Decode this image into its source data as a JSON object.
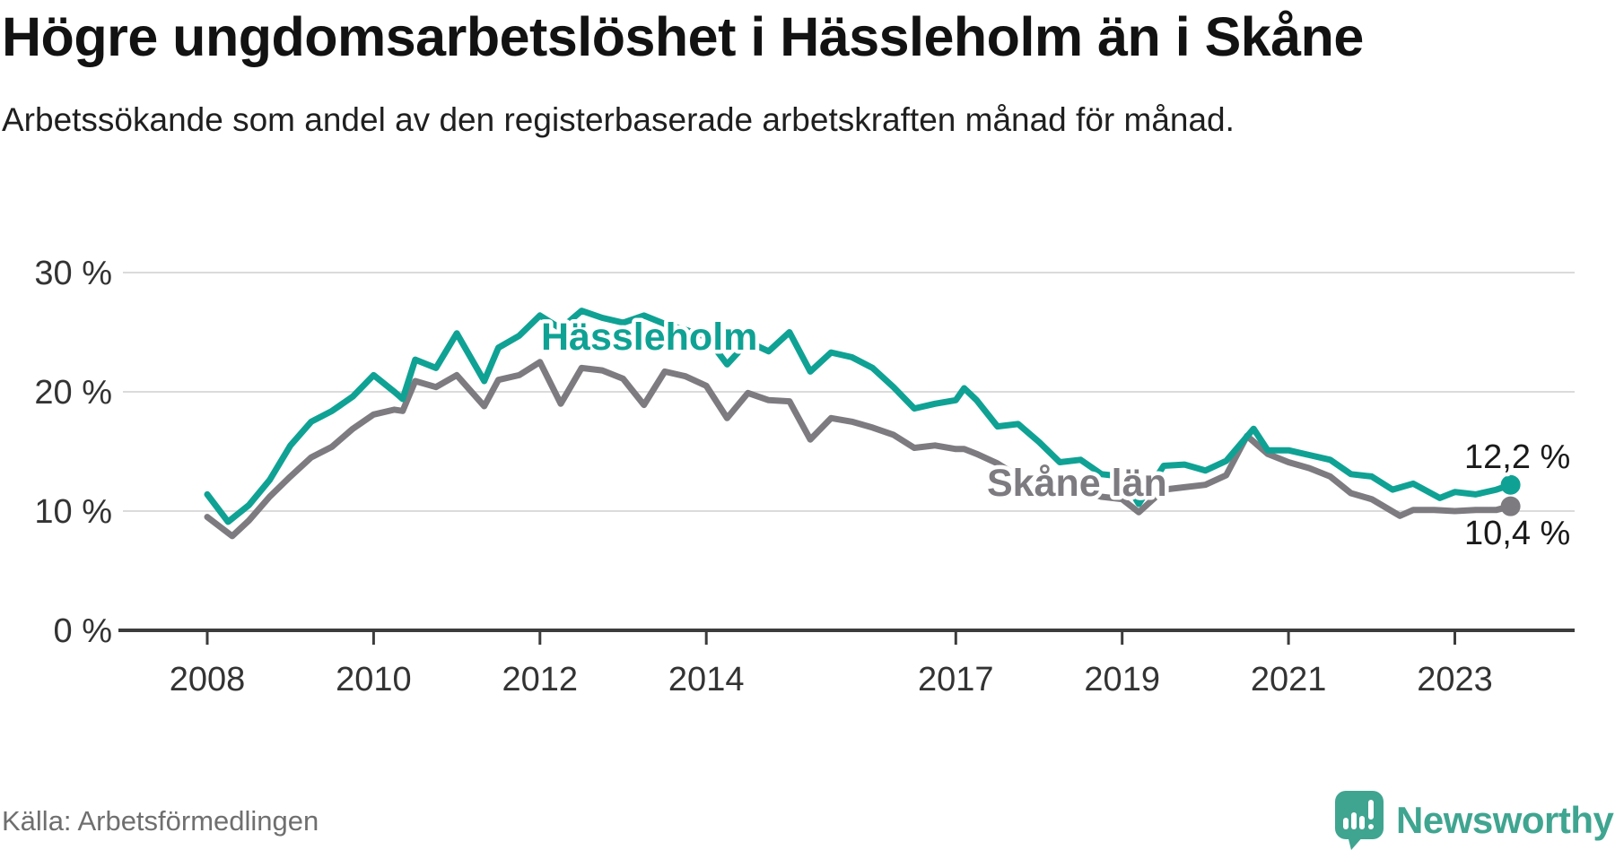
{
  "header": {
    "title": "Högre ungdomsarbetslöshet i Hässleholm än i Skåne",
    "subtitle": "Arbetssökande som andel av den registerbaserade arbetskraften månad för månad."
  },
  "footer": {
    "source": "Källa: Arbetsförmedlingen",
    "brand": "Newsworthy"
  },
  "chart_data": {
    "type": "line",
    "unit": "%",
    "grid": true,
    "legend": "inline-labels",
    "x_axis": {
      "range": [
        2007.0,
        2024.4
      ],
      "ticks": [
        {
          "value": 2008,
          "label": "2008"
        },
        {
          "value": 2010,
          "label": "2010"
        },
        {
          "value": 2012,
          "label": "2012"
        },
        {
          "value": 2014,
          "label": "2014"
        },
        {
          "value": 2017,
          "label": "2017"
        },
        {
          "value": 2019,
          "label": "2019"
        },
        {
          "value": 2021,
          "label": "2021"
        },
        {
          "value": 2023,
          "label": "2023"
        }
      ]
    },
    "y_axis": {
      "range": [
        0,
        31
      ],
      "ticks": [
        {
          "value": 30,
          "label": "30 %"
        },
        {
          "value": 20,
          "label": "20 %"
        },
        {
          "value": 10,
          "label": "10 %"
        },
        {
          "value": 0,
          "label": "0 %"
        }
      ]
    },
    "style": {
      "grid_color": "#DBDBDB",
      "axis_color": "#3C3C3C",
      "tick_text_color": "#333333",
      "value_text_color": "#1A1A1A",
      "accent_teal": "#0FA294",
      "accent_gray": "#7E7B80",
      "logo_teal": "#3FA590"
    },
    "series": [
      {
        "id": "hassleholm",
        "name": "Hässleholm",
        "color": "#0FA294",
        "end_label": "12,2 %",
        "latest_value": 12.2,
        "x": [
          2008.0,
          2008.25,
          2008.5,
          2008.75,
          2009.0,
          2009.25,
          2009.5,
          2009.75,
          2010.0,
          2010.25,
          2010.35,
          2010.5,
          2010.75,
          2011.0,
          2011.33,
          2011.5,
          2011.75,
          2012.0,
          2012.25,
          2012.5,
          2012.75,
          2013.0,
          2013.25,
          2013.5,
          2013.75,
          2014.0,
          2014.25,
          2014.5,
          2014.75,
          2015.0,
          2015.25,
          2015.5,
          2015.75,
          2016.0,
          2016.25,
          2016.5,
          2016.75,
          2017.0,
          2017.1,
          2017.25,
          2017.5,
          2017.75,
          2018.0,
          2018.25,
          2018.5,
          2018.75,
          2019.0,
          2019.2,
          2019.5,
          2019.75,
          2020.0,
          2020.25,
          2020.58,
          2020.75,
          2021.0,
          2021.25,
          2021.5,
          2021.75,
          2022.0,
          2022.25,
          2022.5,
          2022.82,
          2023.0,
          2023.25,
          2023.5,
          2023.67
        ],
        "values": [
          11.4,
          9.1,
          10.5,
          12.6,
          15.5,
          17.5,
          18.4,
          19.6,
          21.4,
          20.0,
          19.4,
          22.7,
          22.0,
          24.9,
          20.9,
          23.7,
          24.7,
          26.4,
          25.3,
          26.8,
          26.2,
          25.8,
          26.4,
          25.7,
          25.2,
          24.6,
          22.3,
          24.2,
          23.4,
          25.0,
          21.7,
          23.3,
          22.9,
          22.0,
          20.4,
          18.6,
          19.0,
          19.3,
          20.3,
          19.3,
          17.1,
          17.3,
          15.8,
          14.1,
          14.3,
          13.1,
          12.9,
          10.6,
          13.8,
          13.9,
          13.4,
          14.2,
          16.9,
          15.1,
          15.1,
          14.7,
          14.3,
          13.1,
          12.9,
          11.8,
          12.3,
          11.1,
          11.6,
          11.4,
          11.8,
          12.2
        ]
      },
      {
        "id": "skane",
        "name": "Skåne län",
        "color": "#7E7B80",
        "end_label": "10,4 %",
        "latest_value": 10.4,
        "x": [
          2008.0,
          2008.3,
          2008.5,
          2008.75,
          2009.0,
          2009.25,
          2009.5,
          2009.75,
          2010.0,
          2010.25,
          2010.35,
          2010.5,
          2010.75,
          2011.0,
          2011.33,
          2011.5,
          2011.75,
          2012.0,
          2012.25,
          2012.5,
          2012.75,
          2013.0,
          2013.25,
          2013.5,
          2013.75,
          2014.0,
          2014.25,
          2014.5,
          2014.75,
          2015.0,
          2015.25,
          2015.5,
          2015.75,
          2016.0,
          2016.25,
          2016.5,
          2016.75,
          2017.0,
          2017.1,
          2017.25,
          2017.5,
          2017.75,
          2018.0,
          2018.25,
          2018.5,
          2018.75,
          2019.0,
          2019.2,
          2019.5,
          2019.75,
          2020.0,
          2020.25,
          2020.5,
          2020.75,
          2021.0,
          2021.25,
          2021.5,
          2021.75,
          2022.0,
          2022.34,
          2022.5,
          2022.75,
          2023.0,
          2023.25,
          2023.5,
          2023.67
        ],
        "values": [
          9.5,
          7.9,
          9.2,
          11.2,
          12.9,
          14.5,
          15.4,
          16.9,
          18.1,
          18.5,
          18.4,
          20.9,
          20.4,
          21.4,
          18.8,
          21.0,
          21.4,
          22.5,
          19.0,
          22.0,
          21.8,
          21.1,
          18.9,
          21.7,
          21.3,
          20.5,
          17.8,
          19.9,
          19.3,
          19.2,
          16.0,
          17.8,
          17.5,
          17.0,
          16.4,
          15.3,
          15.5,
          15.2,
          15.2,
          14.8,
          14.0,
          12.9,
          12.5,
          12.3,
          11.8,
          11.2,
          11.0,
          9.9,
          11.8,
          12.0,
          12.2,
          13.0,
          16.3,
          14.8,
          14.1,
          13.6,
          12.9,
          11.5,
          11.0,
          9.6,
          10.1,
          10.1,
          10.0,
          10.1,
          10.1,
          10.4
        ]
      }
    ]
  }
}
